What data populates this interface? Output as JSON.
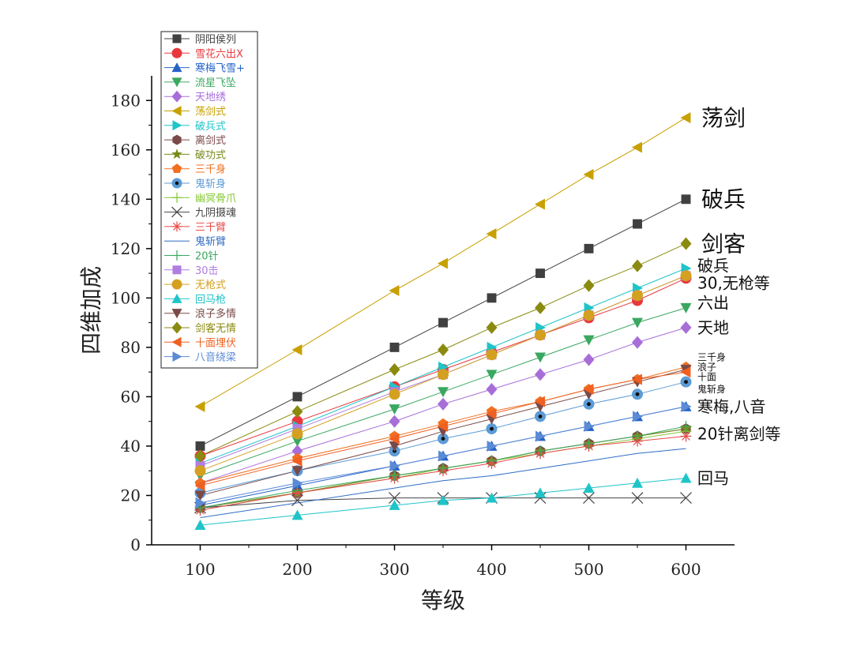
{
  "chart_data": {
    "type": "line",
    "xlabel": "等级",
    "ylabel": "四维加成",
    "xlim": [
      50,
      650
    ],
    "ylim": [
      0,
      190
    ],
    "x_ticks": [
      100,
      200,
      300,
      400,
      500,
      600
    ],
    "y_ticks": [
      0,
      20,
      40,
      60,
      80,
      100,
      120,
      140,
      160,
      180
    ],
    "grid": false,
    "legend_position": "top-left",
    "x": [
      100,
      200,
      300,
      350,
      400,
      450,
      500,
      550,
      600
    ],
    "series": [
      {
        "name": "阴阳侯列",
        "color": "#404040",
        "marker": "square",
        "values": [
          40,
          60,
          80,
          90,
          100,
          110,
          120,
          130,
          140
        ]
      },
      {
        "name": "雪花六出X",
        "color": "#e8383d",
        "marker": "circle",
        "values": [
          36,
          50,
          64,
          71,
          78,
          85,
          92,
          99,
          108
        ]
      },
      {
        "name": "寒梅飞雪+",
        "color": "#2463c8",
        "marker": "triangle-up",
        "values": [
          16,
          24,
          32,
          36,
          40,
          44,
          48,
          52,
          56
        ]
      },
      {
        "name": "流星飞坠",
        "color": "#3aa860",
        "marker": "triangle-down",
        "values": [
          28,
          42,
          55,
          62,
          69,
          76,
          83,
          90,
          96
        ]
      },
      {
        "name": "天地绣",
        "color": "#a86ed8",
        "marker": "diamond",
        "values": [
          25,
          38,
          50,
          57,
          63,
          69,
          75,
          82,
          88
        ]
      },
      {
        "name": "荡剑式",
        "color": "#c8a000",
        "marker": "triangle-left",
        "values": [
          56,
          79,
          103,
          114,
          126,
          138,
          150,
          161,
          173
        ]
      },
      {
        "name": "破兵式",
        "color": "#1fc4c8",
        "marker": "triangle-right",
        "values": [
          33,
          48,
          64,
          72,
          80,
          88,
          96,
          104,
          112
        ]
      },
      {
        "name": "离剑式",
        "color": "#7a4a48",
        "marker": "hexagon",
        "values": [
          15,
          21,
          28,
          31,
          34,
          38,
          41,
          44,
          47
        ]
      },
      {
        "name": "破功式",
        "color": "#7a8a18",
        "marker": "star",
        "values": [
          15,
          21,
          28,
          31,
          34,
          38,
          41,
          44,
          47
        ]
      },
      {
        "name": "三千身",
        "color": "#f07020",
        "marker": "pentagon",
        "values": [
          25,
          35,
          44,
          49,
          54,
          58,
          63,
          67,
          72
        ]
      },
      {
        "name": "鬼斩身",
        "color": "#5c9bd6",
        "marker": "dot-circle",
        "values": [
          21,
          30,
          38,
          43,
          47,
          52,
          57,
          61,
          66
        ]
      },
      {
        "name": "幽冥骨爪",
        "color": "#86c836",
        "marker": "plus",
        "values": [
          14,
          21,
          27,
          31,
          34,
          37,
          40,
          43,
          46
        ]
      },
      {
        "name": "九阴摄魂",
        "color": "#444444",
        "marker": "x",
        "values": [
          15,
          18,
          19,
          19,
          19,
          19,
          19,
          19,
          19
        ]
      },
      {
        "name": "三千臂",
        "color": "#e84a4a",
        "marker": "asterisk",
        "values": [
          14,
          21,
          27,
          30,
          33,
          37,
          40,
          42,
          44
        ]
      },
      {
        "name": "鬼斩臂",
        "color": "#2f6cc4",
        "marker": "none",
        "values": [
          11,
          17,
          23,
          26,
          28,
          31,
          34,
          37,
          39
        ]
      },
      {
        "name": "20针",
        "color": "#3aa860",
        "marker": "plus",
        "values": [
          15,
          22,
          28,
          31,
          34,
          38,
          41,
          44,
          48
        ]
      },
      {
        "name": "30击",
        "color": "#b07ee0",
        "marker": "square",
        "values": [
          32,
          47,
          62,
          69,
          77,
          85,
          93,
          101,
          109
        ]
      },
      {
        "name": "无枪式",
        "color": "#d4a020",
        "marker": "circle",
        "values": [
          30,
          45,
          61,
          69,
          77,
          85,
          93,
          101,
          109
        ]
      },
      {
        "name": "回马枪",
        "color": "#1fc4c8",
        "marker": "triangle-up",
        "values": [
          8,
          12,
          16,
          18,
          19,
          21,
          23,
          25,
          27
        ]
      },
      {
        "name": "浪子多情",
        "color": "#7a4a48",
        "marker": "triangle-down",
        "values": [
          20,
          30,
          40,
          46,
          51,
          56,
          61,
          66,
          71
        ]
      },
      {
        "name": "剑客无情",
        "color": "#8a8a10",
        "marker": "diamond",
        "values": [
          36,
          54,
          71,
          79,
          88,
          96,
          105,
          113,
          122
        ]
      },
      {
        "name": "十面埋伏",
        "color": "#f06020",
        "marker": "triangle-left",
        "values": [
          24,
          34,
          43,
          48,
          53,
          58,
          63,
          67,
          70
        ]
      },
      {
        "name": "八音绕梁",
        "color": "#5b8ad6",
        "marker": "triangle-right",
        "values": [
          17,
          25,
          32,
          36,
          40,
          44,
          48,
          52,
          56
        ]
      }
    ],
    "annotations": [
      {
        "text": "荡剑",
        "y": 173,
        "size": "large"
      },
      {
        "text": "破兵",
        "y": 140,
        "size": "large"
      },
      {
        "text": "剑客",
        "y": 122,
        "size": "large"
      },
      {
        "text": "破兵",
        "y": 113,
        "size": "medium"
      },
      {
        "text": "30,无枪等",
        "y": 106,
        "size": "medium"
      },
      {
        "text": "六出",
        "y": 98,
        "size": "medium"
      },
      {
        "text": "天地",
        "y": 88,
        "size": "medium"
      },
      {
        "text": "三千身",
        "y": 76,
        "size": "small"
      },
      {
        "text": "浪子",
        "y": 72,
        "size": "small"
      },
      {
        "text": "十面",
        "y": 68,
        "size": "small"
      },
      {
        "text": "鬼斩身",
        "y": 63,
        "size": "small"
      },
      {
        "text": "寒梅,八音",
        "y": 56,
        "size": "medium"
      },
      {
        "text": "20针离剑等",
        "y": 45,
        "size": "medium"
      },
      {
        "text": "回马",
        "y": 27,
        "size": "medium"
      }
    ]
  }
}
